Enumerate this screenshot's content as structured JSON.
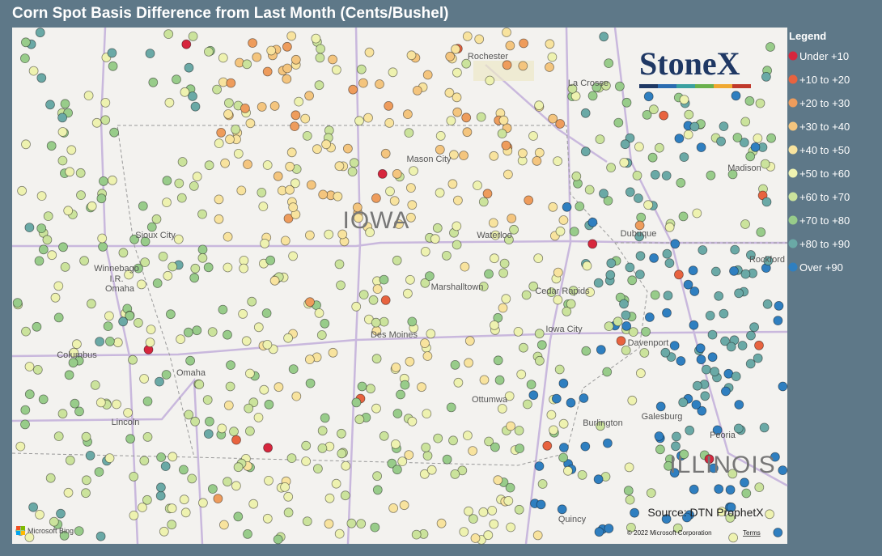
{
  "header": {
    "title": "Corn Spot Basis Difference from Last Month (Cents/Bushel)"
  },
  "legend": {
    "title": "Legend",
    "items": [
      {
        "label": "Under +10",
        "color": "#d7263d"
      },
      {
        "label": "+10 to +20",
        "color": "#e8633f"
      },
      {
        "label": "+20 to +30",
        "color": "#ee9c5c"
      },
      {
        "label": "+30 to +40",
        "color": "#f4c57e"
      },
      {
        "label": "+40 to +50",
        "color": "#f8e39e"
      },
      {
        "label": "+50 to +60",
        "color": "#eef2b0"
      },
      {
        "label": "+60 to +70",
        "color": "#cbe39c"
      },
      {
        "label": "+70 to +80",
        "color": "#98cc8a"
      },
      {
        "label": "+80 to +90",
        "color": "#6aa9a6"
      },
      {
        "label": "Over +90",
        "color": "#2f7fc0"
      }
    ]
  },
  "logo": "StoneX",
  "map": {
    "states": [
      "IOWA",
      "ILLINOIS"
    ],
    "cities": [
      "Rochester",
      "La Crosse",
      "Mason City",
      "Madison",
      "Sioux City",
      "Waterloo",
      "Dubuque",
      "Rockford",
      "Winnebago",
      "I.R.",
      "Omaha",
      "Marshalltown",
      "Cedar Rapids",
      "Iowa City",
      "Davenport",
      "Des Moines",
      "Columbus",
      "Omaha",
      "Ottumwa",
      "Galesburg",
      "Lincoln",
      "Burlington",
      "Peoria",
      "Quincy"
    ]
  },
  "source": "Source: DTN ProphetX",
  "attribution": {
    "provider": "Microsoft Bing",
    "copyright": "© 2022 Microsoft Corporation",
    "terms": "Terms"
  }
}
